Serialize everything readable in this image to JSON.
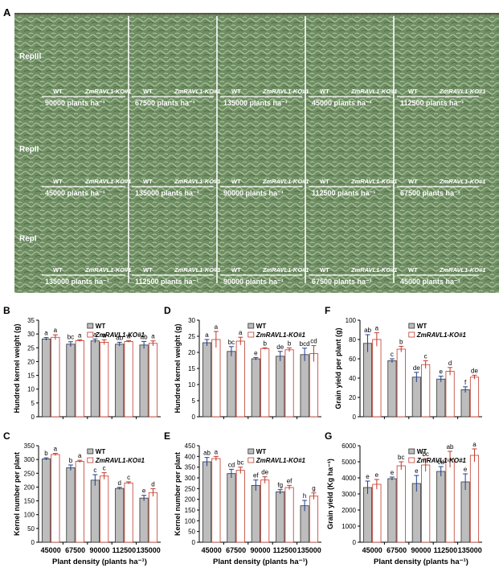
{
  "figure": {
    "panel_photo": "A",
    "reps": [
      {
        "name": "RepIII",
        "blocks": [
          {
            "wt": "WT",
            "ko": "ZmRAVL1-KO#1",
            "density": "90000 plants ha⁻¹"
          },
          {
            "wt": "WT",
            "ko": "ZmRAVL1-KO#1",
            "density": "67500 plants ha⁻¹"
          },
          {
            "wt": "WT",
            "ko": "ZmRAVL1-KO#1",
            "density": "135000 plants ha⁻¹"
          },
          {
            "wt": "WT",
            "ko": "ZmRAVL1-KO#1",
            "density": "45000 plants ha⁻¹"
          },
          {
            "wt": "WT",
            "ko": "ZmRAVL1-KO#1",
            "density": "112500 plants ha⁻¹"
          }
        ]
      },
      {
        "name": "RepII",
        "blocks": [
          {
            "wt": "WT",
            "ko": "ZmRAVL1-KO#1",
            "density": "45000 plants ha⁻¹"
          },
          {
            "wt": "WT",
            "ko": "ZmRAVL1-KO#1",
            "density": "135000 plants ha⁻¹"
          },
          {
            "wt": "WT",
            "ko": "ZmRAVL1-KO#1",
            "density": "90000 plants ha⁻¹"
          },
          {
            "wt": "WT",
            "ko": "ZmRAVL1-KO#1",
            "density": "112500 plants ha⁻¹"
          },
          {
            "wt": "WT",
            "ko": "ZmRAVL1-KO#1",
            "density": "67500 plants ha⁻¹"
          }
        ]
      },
      {
        "name": "RepI",
        "blocks": [
          {
            "wt": "WT",
            "ko": "ZmRAVL1-KO#1",
            "density": "135000 plants ha⁻¹"
          },
          {
            "wt": "WT",
            "ko": "ZmRAVL1-KO#1",
            "density": "112500 plants ha⁻¹"
          },
          {
            "wt": "WT",
            "ko": "ZmRAVL1-KO#1",
            "density": "90000 plants ha⁻¹"
          },
          {
            "wt": "WT",
            "ko": "ZmRAVL1-KO#1",
            "density": "67500 plants ha⁻¹"
          },
          {
            "wt": "WT",
            "ko": "ZmRAVL1-KO#1",
            "density": "45000 plants ha⁻¹"
          }
        ]
      }
    ]
  },
  "colors": {
    "wt": "#bdbdbd",
    "ko": "#ffffff",
    "ko_edge": "#c0392b",
    "wt_edge": "#333333",
    "error_wt": "#1f3f8f",
    "error_ko": "#c0392b"
  },
  "chart_data": [
    {
      "panel": "B",
      "type": "bar",
      "categories": [
        "45000",
        "67500",
        "90000",
        "112500",
        "135000"
      ],
      "series": [
        {
          "name": "WT",
          "values": [
            28.2,
            26.3,
            27.5,
            26.3,
            26.0
          ],
          "errors": [
            0.5,
            0.9,
            0.7,
            0.7,
            1.3
          ]
        },
        {
          "name": "ZmRAVL1-KO#1",
          "values": [
            28.8,
            27.6,
            27.0,
            27.3,
            26.6
          ],
          "errors": [
            0.9,
            0.3,
            0.9,
            0.3,
            0.9
          ]
        }
      ],
      "letters": [
        [
          "a",
          "a"
        ],
        [
          "bc",
          "a"
        ],
        [
          "a",
          "a"
        ],
        [
          "ab",
          "a"
        ],
        [
          "ab",
          "a"
        ]
      ],
      "ylabel": "Hundred kernel weight (g)",
      "xlabel": "",
      "ylim": [
        0,
        35
      ],
      "yticks": [
        0,
        5,
        10,
        15,
        20,
        25,
        30,
        35
      ],
      "show_xticklabels": false
    },
    {
      "panel": "D",
      "type": "bar",
      "categories": [
        "45000",
        "67500",
        "90000",
        "112500",
        "135000"
      ],
      "series": [
        {
          "name": "WT",
          "values": [
            23.0,
            20.3,
            18.0,
            18.8,
            19.3
          ],
          "errors": [
            1.0,
            1.5,
            0.4,
            1.5,
            2.0
          ]
        },
        {
          "name": "ZmRAVL1-KO#1",
          "values": [
            24.0,
            23.5,
            21.2,
            20.8,
            19.6
          ],
          "errors": [
            2.5,
            1.2,
            0.2,
            0.6,
            2.5
          ]
        }
      ],
      "letters": [
        [
          "a",
          "a"
        ],
        [
          "bc",
          "a"
        ],
        [
          "e",
          "b"
        ],
        [
          "de",
          "b"
        ],
        [
          "bcd",
          "cd"
        ]
      ],
      "ylabel": "Hundred kernel weight (g)",
      "xlabel": "",
      "ylim": [
        0,
        30
      ],
      "yticks": [
        0,
        5,
        10,
        15,
        20,
        25,
        30
      ],
      "show_xticklabels": false
    },
    {
      "panel": "F",
      "type": "bar",
      "categories": [
        "45000",
        "67500",
        "90000",
        "112500",
        "135000"
      ],
      "series": [
        {
          "name": "WT",
          "values": [
            76,
            58,
            41,
            39,
            28
          ],
          "errors": [
            9,
            2,
            5,
            3,
            3
          ]
        },
        {
          "name": "ZmRAVL1-KO#1",
          "values": [
            80,
            70,
            54,
            47,
            41
          ],
          "errors": [
            7,
            3,
            4,
            4,
            2
          ]
        }
      ],
      "letters": [
        [
          "ab",
          "a"
        ],
        [
          "c",
          "b"
        ],
        [
          "de",
          "c"
        ],
        [
          "e",
          "d"
        ],
        [
          "f",
          "de"
        ]
      ],
      "ylabel": "Grain yield per plant (g)",
      "xlabel": "",
      "ylim": [
        0,
        100
      ],
      "yticks": [
        0,
        20,
        40,
        60,
        80,
        100
      ],
      "show_xticklabels": false
    },
    {
      "panel": "C",
      "type": "bar",
      "categories": [
        "45000",
        "67500",
        "90000",
        "112500",
        "135000"
      ],
      "series": [
        {
          "name": "WT",
          "values": [
            302,
            270,
            225,
            195,
            160
          ],
          "errors": [
            4,
            10,
            20,
            4,
            10
          ]
        },
        {
          "name": "ZmRAVL1-KO#1",
          "values": [
            318,
            293,
            240,
            215,
            180
          ],
          "errors": [
            4,
            4,
            12,
            4,
            14
          ]
        }
      ],
      "letters": [
        [
          "b",
          "a"
        ],
        [
          "b",
          "a"
        ],
        [
          "c",
          "c"
        ],
        [
          "d",
          "c"
        ],
        [
          "e",
          "d"
        ]
      ],
      "ylabel": "Kernel number per plant",
      "xlabel": "Plant density (plants ha⁻¹)",
      "ylim": [
        0,
        350
      ],
      "yticks": [
        0,
        50,
        100,
        150,
        200,
        250,
        300,
        350
      ],
      "show_xticklabels": true
    },
    {
      "panel": "E",
      "type": "bar",
      "categories": [
        "45000",
        "67500",
        "90000",
        "112500",
        "135000"
      ],
      "series": [
        {
          "name": "WT",
          "values": [
            375,
            320,
            265,
            235,
            170
          ],
          "errors": [
            20,
            20,
            25,
            10,
            25
          ]
        },
        {
          "name": "ZmRAVL1-KO#1",
          "values": [
            390,
            335,
            290,
            255,
            215
          ],
          "errors": [
            10,
            15,
            15,
            10,
            15
          ]
        }
      ],
      "letters": [
        [
          "ab",
          "a"
        ],
        [
          "cd",
          "bc"
        ],
        [
          "ef",
          "de"
        ],
        [
          "fg",
          "ef"
        ],
        [
          "h",
          "g"
        ]
      ],
      "ylabel": "Kernel number per plant",
      "xlabel": "Plant density (plants ha⁻¹)",
      "ylim": [
        0,
        450
      ],
      "yticks": [
        0,
        50,
        100,
        150,
        200,
        250,
        300,
        350,
        400,
        450
      ],
      "show_xticklabels": true
    },
    {
      "panel": "G",
      "type": "bar",
      "categories": [
        "45000",
        "67500",
        "90000",
        "112500",
        "135000"
      ],
      "series": [
        {
          "name": "WT",
          "values": [
            3400,
            3950,
            3650,
            4400,
            3750
          ],
          "errors": [
            400,
            100,
            500,
            300,
            500
          ]
        },
        {
          "name": "ZmRAVL1-KO#1",
          "values": [
            3600,
            4750,
            4800,
            5150,
            5400
          ],
          "errors": [
            300,
            250,
            400,
            500,
            400
          ]
        }
      ],
      "letters": [
        [
          "e",
          "e"
        ],
        [
          "e",
          "bc"
        ],
        [
          "e",
          "bc"
        ],
        [
          "cd",
          "ab"
        ],
        [
          "e",
          "a"
        ]
      ],
      "ylabel": "Grain yield (Kg ha⁻¹)",
      "xlabel": "Plant density (plants ha⁻¹)",
      "ylim": [
        0,
        6000
      ],
      "yticks": [
        0,
        1000,
        2000,
        3000,
        4000,
        5000,
        6000
      ],
      "show_xticklabels": true
    }
  ]
}
